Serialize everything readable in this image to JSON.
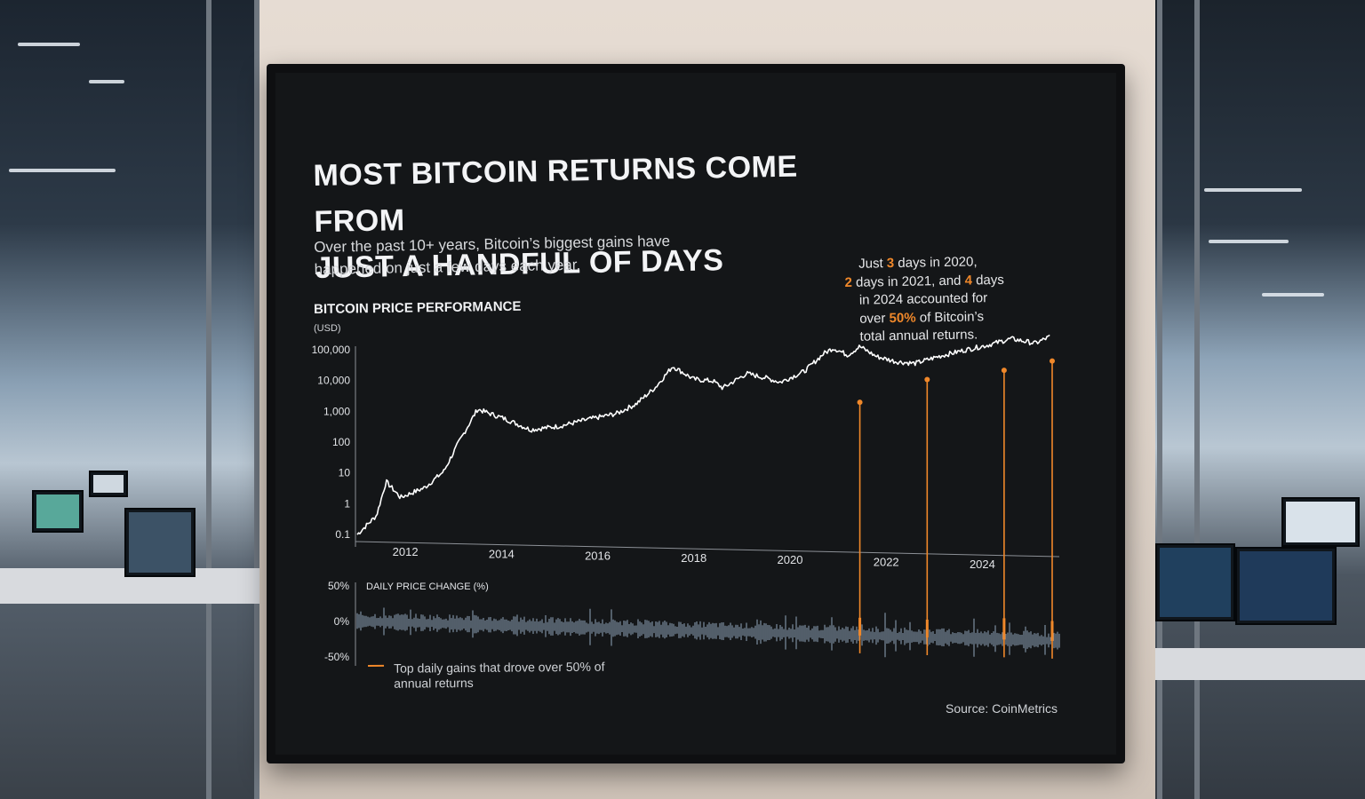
{
  "headline": {
    "line1": "MOST BITCOIN RETURNS COME FROM",
    "line2": "JUST A HANDFUL OF DAYS"
  },
  "subtitle": {
    "line1": "Over the past 10+ years, Bitcoin’s biggest gains have",
    "line2": "happened on just a few days each year."
  },
  "annotation": {
    "p1": "Just ",
    "n1": "3",
    "p2": " days in 2020,",
    "n2": "2",
    "p3": " days in 2021, and ",
    "n3": "4",
    "p4": " days",
    "p5": "in 2024 accounted for",
    "p6": "over ",
    "n4": "50%",
    "p7": " of Bitcoin’s",
    "p8": "total annual returns."
  },
  "legend": {
    "text": "Top daily gains that drove over 50% of annual returns"
  },
  "source": "Source: CoinMetrics",
  "colors": {
    "line": "#ffffff",
    "highlight": "#f0882a",
    "volatility": "#8fa3b8",
    "background": "#141618"
  },
  "chart_data": [
    {
      "type": "line",
      "title": "BITCOIN PRICE PERFORMANCE",
      "ylabel": "(USD)",
      "yscale": "log",
      "ylim": [
        0.1,
        100000
      ],
      "y_ticks": [
        "100,000",
        "10,000",
        "1,000",
        "100",
        "10",
        "1",
        "0.1"
      ],
      "x_ticks": [
        "2012",
        "2014",
        "2016",
        "2018",
        "2020",
        "2022",
        "2024"
      ],
      "series": [
        {
          "x": [
            2011.4,
            2011.8,
            2012.0,
            2012.3,
            2012.8,
            2013.2,
            2013.5,
            2013.9,
            2014.5,
            2015.0,
            2015.6,
            2016.2,
            2016.8,
            2017.2,
            2017.6,
            2017.96,
            2018.4,
            2018.8,
            2019.0,
            2019.5,
            2019.9,
            2020.2,
            2020.7,
            2021.1,
            2021.3,
            2021.6,
            2021.85,
            2022.2,
            2022.6,
            2023.0,
            2023.5,
            2024.0,
            2024.5,
            2025.0,
            2025.5,
            2025.8
          ],
          "values": [
            0.1,
            0.4,
            5,
            1.5,
            3,
            10,
            80,
            1000,
            450,
            200,
            250,
            400,
            600,
            1200,
            4000,
            19000,
            7000,
            6000,
            3500,
            10000,
            7000,
            5000,
            11000,
            40000,
            60000,
            35000,
            65000,
            30000,
            20000,
            17000,
            28000,
            42000,
            60000,
            95000,
            65000,
            105000
          ]
        }
      ],
      "highlights": [
        {
          "x": 2022.0,
          "y": 1000
        },
        {
          "x": 2023.4,
          "y": 5000
        },
        {
          "x": 2025.0,
          "y": 9000
        },
        {
          "x": 2026.0,
          "y": 17000
        }
      ]
    },
    {
      "type": "area",
      "title": "DAILY PRICE CHANGE (%)",
      "ylim": [
        -50,
        50
      ],
      "y_ticks": [
        "50%",
        "0%",
        "-50%"
      ],
      "series": [
        {
          "name": "Top daily gains that drove over 50% of annual returns",
          "x": [
            2022.0,
            2023.4,
            2025.0,
            2026.0
          ],
          "values": [
            25,
            25,
            30,
            28
          ]
        }
      ]
    }
  ]
}
